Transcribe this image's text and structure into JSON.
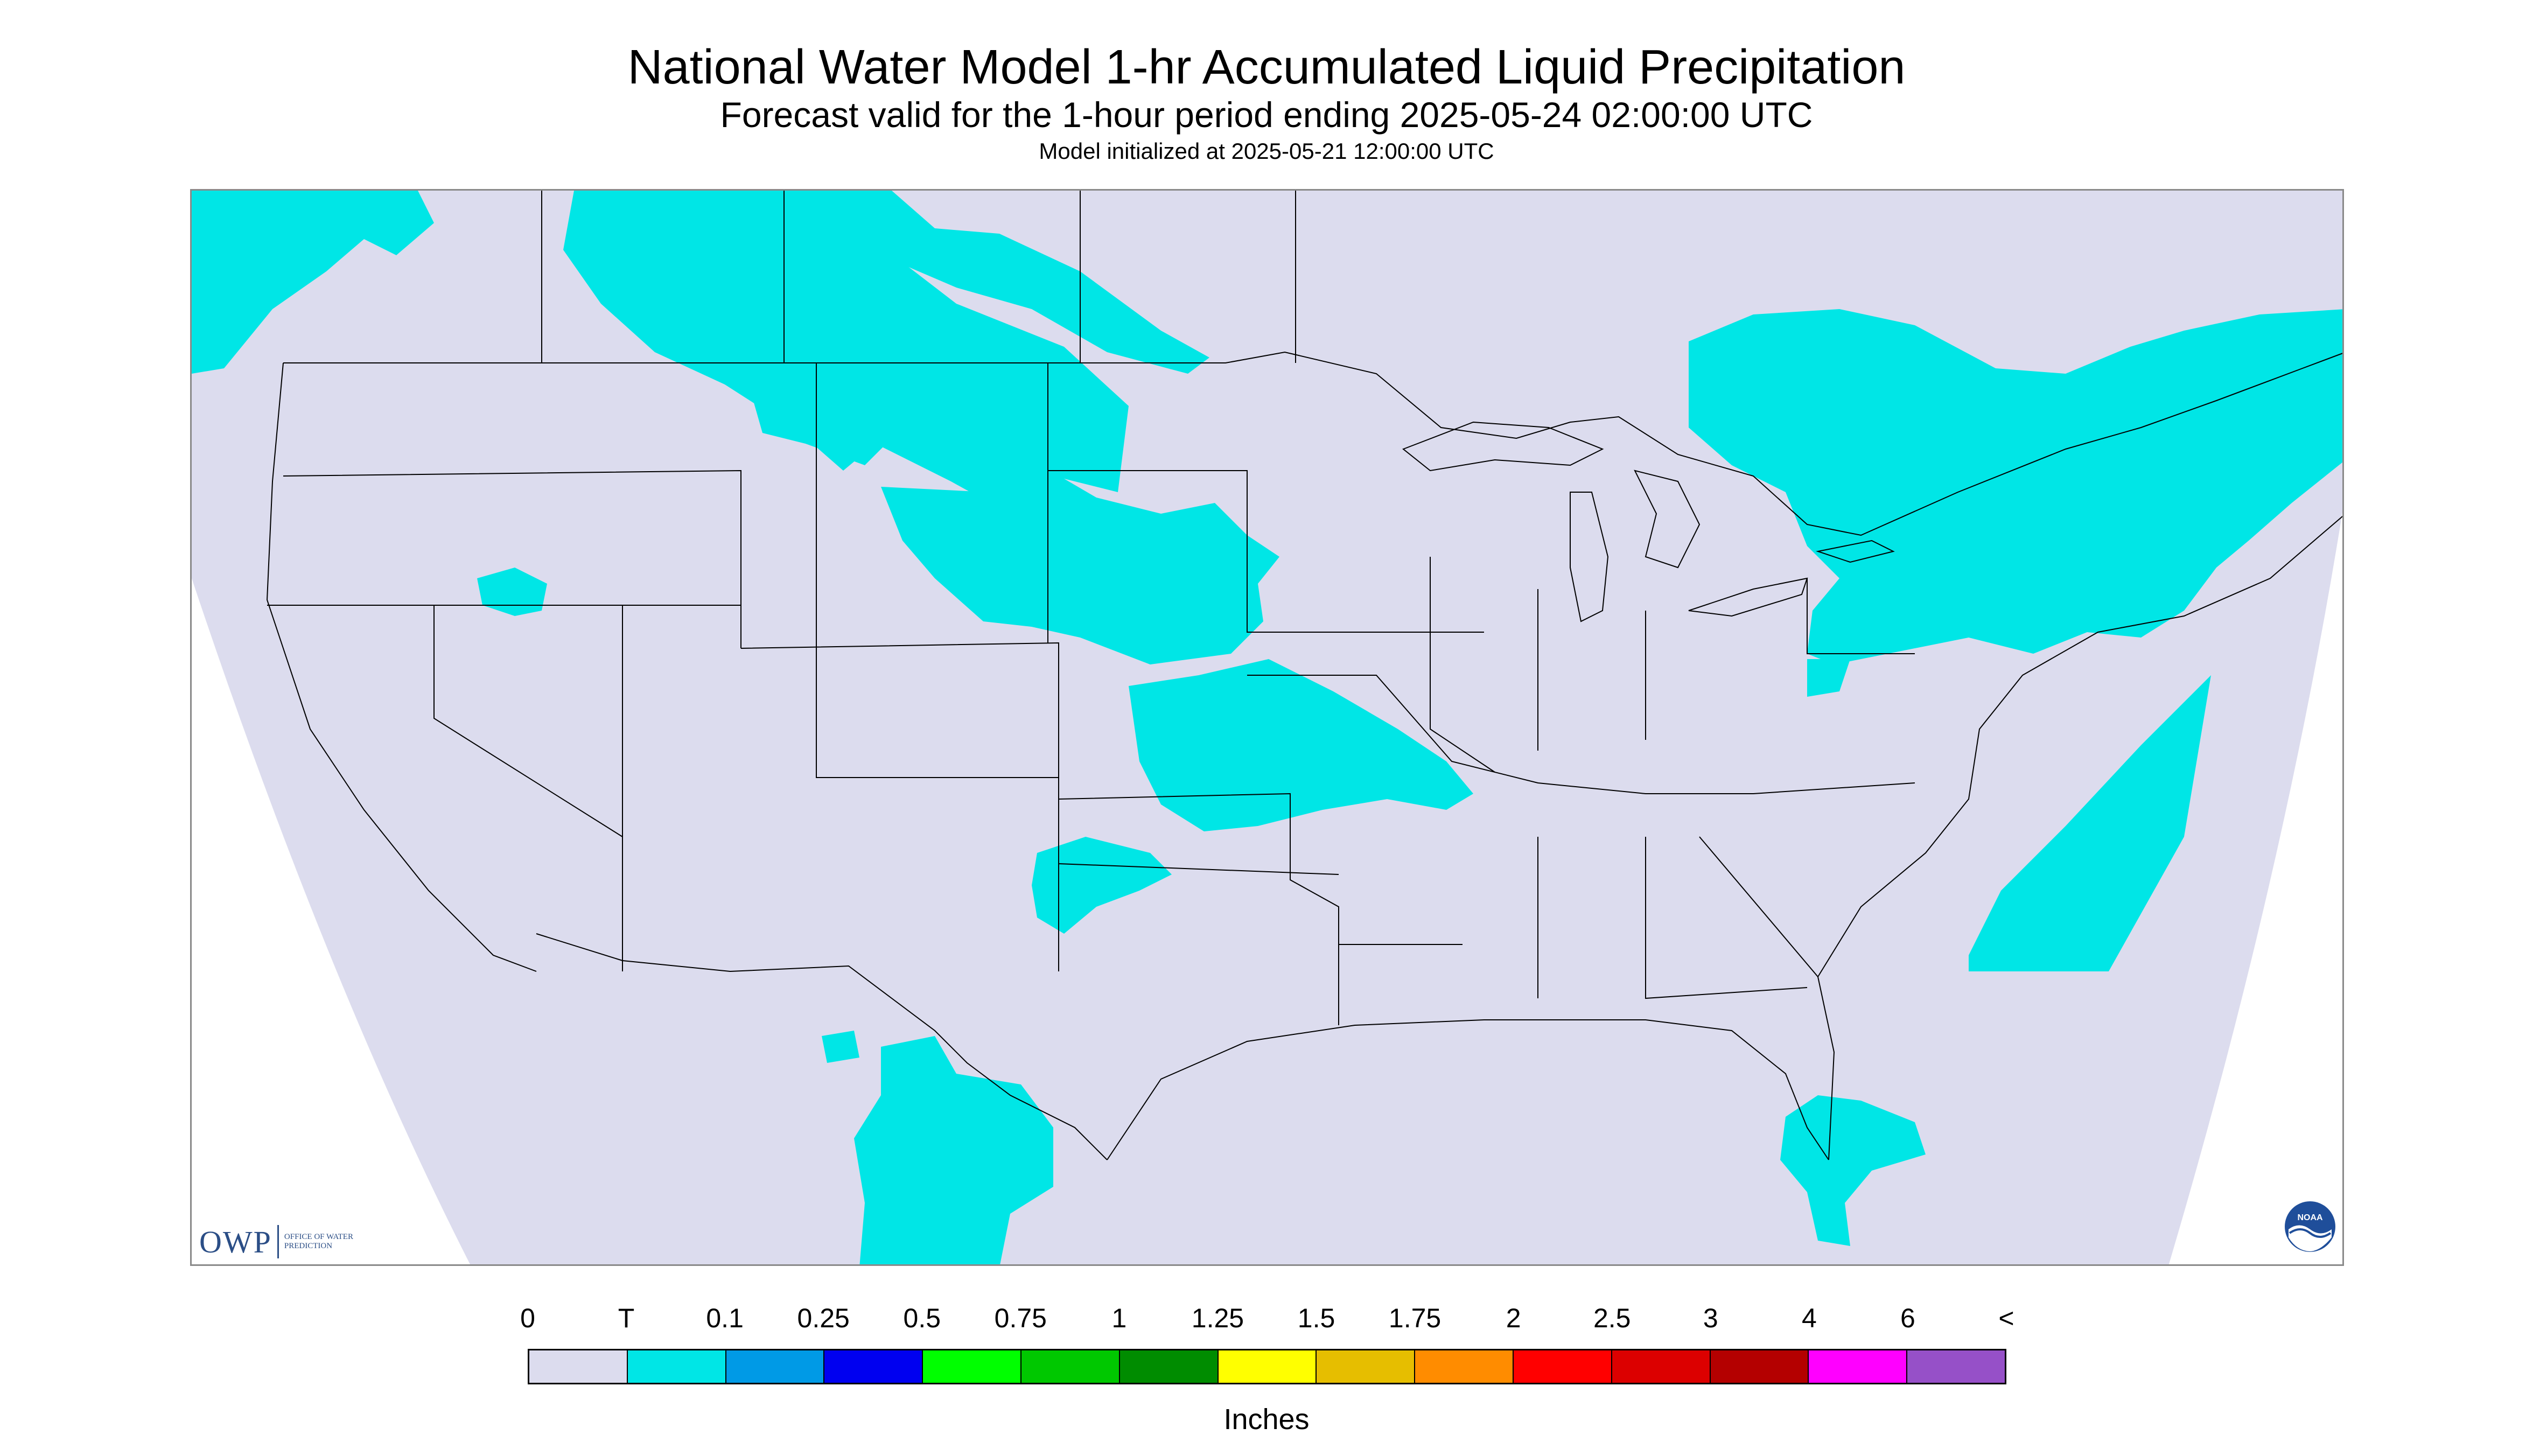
{
  "title": "National Water Model 1-hr Accumulated Liquid Precipitation",
  "subtitle": "Forecast valid for the 1-hour period ending 2025-05-24 02:00:00 UTC",
  "init_text": "Model initialized at 2025-05-21 12:00:00 UTC",
  "logos": {
    "owp_text": "OWP",
    "owp_office": "OFFICE OF WATER PREDICTION",
    "noaa_text": "NOAA"
  },
  "colors": {
    "map_background": "#dcdcee",
    "outside_domain": "#ffffff",
    "boundary_lines": "#000000"
  },
  "legend": {
    "units": "Inches",
    "labels": [
      "0",
      "T",
      "0.1",
      "0.25",
      "0.5",
      "0.75",
      "1",
      "1.25",
      "1.5",
      "1.75",
      "2",
      "2.5",
      "3",
      "4",
      "6",
      "<"
    ],
    "colors": [
      "#dcdcee",
      "#00e6e6",
      "#009ae6",
      "#0000f0",
      "#00ff00",
      "#00c800",
      "#008c00",
      "#ffff00",
      "#e6be00",
      "#ff8c00",
      "#ff0000",
      "#dc0000",
      "#b40000",
      "#ff00ff",
      "#9650c8"
    ]
  },
  "precipitation_category_shown": "T"
}
